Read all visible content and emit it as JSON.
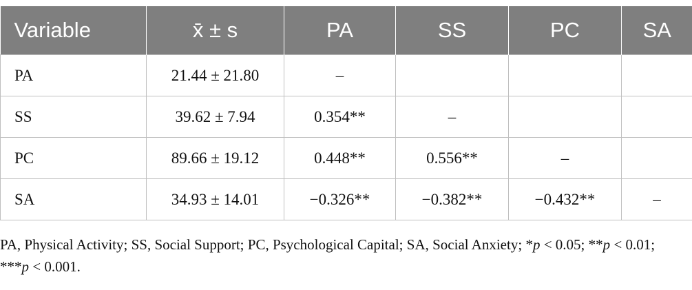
{
  "table": {
    "headers": [
      "Variable",
      "x̄ ± s",
      "PA",
      "SS",
      "PC",
      "SA"
    ],
    "rows": [
      [
        "PA",
        "21.44 ± 21.80",
        "–",
        "",
        "",
        ""
      ],
      [
        "SS",
        "39.62 ± 7.94",
        "0.354**",
        "–",
        "",
        ""
      ],
      [
        "PC",
        "89.66 ± 19.12",
        "0.448**",
        "0.556**",
        "–",
        ""
      ],
      [
        "SA",
        "34.93 ± 14.01",
        "−0.326**",
        "−0.382**",
        "−0.432**",
        "–"
      ]
    ]
  },
  "note": {
    "abbreviations": "PA, Physical Activity; SS, Social Support; PC, Psychological Capital; SA, Social Anxiety; ",
    "sig1_prefix": "*",
    "sig1_p": "p",
    "sig1_value": " < 0.05; ",
    "sig2_prefix": "**",
    "sig2_p": "p",
    "sig2_value": " < 0.01; ",
    "sig3_prefix": "***",
    "sig3_p": "p",
    "sig3_value": " < 0.001."
  }
}
